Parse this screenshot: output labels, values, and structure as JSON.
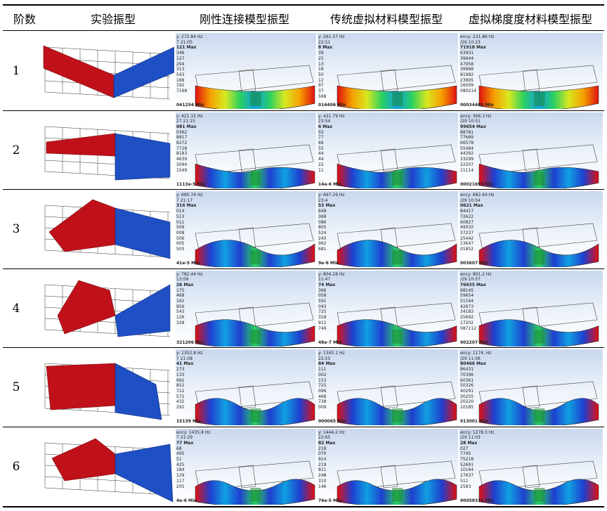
{
  "headers": {
    "order": "阶数",
    "experimental": "实验振型",
    "rigid": "刚性连接模型振型",
    "traditional": "传统虚拟材料模型振型",
    "gradient": "虚拟梯度度材料模型振型"
  },
  "rows": [
    {
      "order": "1",
      "rigid": {
        "freq": "y: 272.84 Hz",
        "time": "7 21:05",
        "max": "121 Max",
        "ticks": [
          "346",
          "127",
          "294",
          "313",
          "543",
          "188",
          "192",
          "7168"
        ],
        "min": "041254 Min"
      },
      "traditional": {
        "freq": "y: 261.57 Hz",
        "time": "22:51",
        "max": "8 Max",
        "ticks": [
          "39",
          "25",
          "13",
          "18",
          "50",
          "12",
          "97",
          "37",
          "568"
        ],
        "min": "016406 Min"
      },
      "gradient": {
        "freq": "ency: 231.86 Hz",
        "time": "/29 10:23",
        "max": "71918 Max",
        "ticks": [
          "63931",
          "39944",
          "47958",
          "39968",
          "81982",
          "23995",
          "16009",
          "080214"
        ],
        "min": "00034405 Min"
      }
    },
    {
      "order": "2",
      "rigid": {
        "freq": "y: 421.15 Hz",
        "time": "27 21:15",
        "max": "081 Max",
        "ticks": [
          "0362",
          "8817",
          "8272",
          "7728",
          "8183",
          "4639",
          "3094",
          "1549"
        ],
        "min": "1113e-5 Min"
      },
      "traditional": {
        "freq": "y: 421.79 Hz",
        "time": "23:54",
        "max": "6 Max",
        "ticks": [
          "55",
          "77",
          "66",
          "55",
          "44",
          "44",
          "22",
          "11"
        ],
        "min": "14e-6 Min"
      },
      "gradient": {
        "freq": "ency: 366.3 Hz",
        "time": "/29 10:51",
        "max": "99654 Max",
        "ticks": [
          "88781",
          "77669",
          "66578",
          "55484",
          "44392",
          "33299",
          "22207",
          "11114"
        ],
        "min": "00021693 Min"
      }
    },
    {
      "order": "3",
      "rigid": {
        "freq": "y: 690.74 Hz",
        "time": "7 21:17",
        "max": "316 Max",
        "ticks": [
          "014",
          "513",
          "011",
          "509",
          "008",
          "506",
          "005",
          "503"
        ],
        "min": "41e-5 Min"
      },
      "traditional": {
        "freq": "y: 667.29 Hz",
        "time": "23:4",
        "max": "53 Max",
        "ticks": [
          "649",
          "368",
          "086",
          "805",
          "524",
          "243",
          "962",
          "681"
        ],
        "min": "9e-6 Min"
      },
      "gradient": {
        "freq": "ency: 682.64 Hz",
        "time": "/29 10:54",
        "max": "0621 Max",
        "ticks": [
          "84417",
          "72622",
          "60827",
          "49032",
          "37237",
          "25442",
          "13647",
          "01852"
        ],
        "min": "003607 Min"
      }
    },
    {
      "order": "4",
      "rigid": {
        "freq": "y: 782.44 Hz",
        "time": "13:09",
        "max": "26 Max",
        "ticks": [
          "175",
          "468",
          "162",
          "856",
          "543",
          "126",
          "",
          "328"
        ],
        "min": "321206 Min"
      },
      "traditional": {
        "freq": "y: 804.28 Hz",
        "time": "11:47",
        "max": "74 Max",
        "ticks": [
          "366",
          "058",
          "591",
          "043",
          "725",
          "318",
          "911",
          "749"
        ],
        "min": "48e-7 Min"
      },
      "gradient": {
        "freq": "ency: 801.2 Hz",
        "time": "/29 10:57",
        "max": "76635 Max",
        "ticks": [
          "68145",
          "59654",
          "51164",
          "42673",
          "34183",
          "25692",
          "17202",
          "087112"
        ],
        "min": "002207 Min"
      }
    },
    {
      "order": "5",
      "rigid": {
        "freq": "y: 1352.8 Hz",
        "time": "7 21:08",
        "max": "41 Max",
        "ticks": [
          "273",
          "133",
          "992",
          "852",
          "712",
          "572",
          "432",
          "292"
        ],
        "min": "15139 Min"
      },
      "traditional": {
        "freq": "y: 1345.1 Hz",
        "time": "22:55",
        "max": "84 Max",
        "ticks": [
          "111",
          "002",
          "153",
          "725",
          "096",
          "468",
          "738",
          "009"
        ],
        "min": "000065 Min"
      },
      "gradient": {
        "freq": "ency: 1174. Hz",
        "time": "/29 11:06",
        "max": "80466 Max",
        "ticks": [
          "86431",
          "70396",
          "60361",
          "50326",
          "40291",
          "30255",
          "20220",
          "10185"
        ],
        "min": "013001 Min"
      }
    },
    {
      "order": "6",
      "rigid": {
        "freq": "ency: 1435.8 Hz",
        "time": "7 21:29",
        "max": "77 Max",
        "ticks": [
          "68",
          "495",
          "51",
          "425",
          "184",
          "129",
          "117",
          "205"
        ],
        "min": "4e-6 Min"
      },
      "traditional": {
        "freq": "y: 1444.2 Hz",
        "time": "22:65",
        "max": "82 Max",
        "ticks": [
          "218",
          "070",
          "914",
          "219",
          "811",
          "248",
          "310",
          "146"
        ],
        "min": "76e-5 Min"
      },
      "gradient": {
        "freq": "ency: 1278.3 Hz",
        "time": "/29 11:03",
        "max": "28 Max",
        "ticks": [
          "027",
          "7745",
          "75218",
          "52691",
          "10164",
          "27637",
          "511",
          "2583"
        ],
        "min": "00058331 Min"
      }
    }
  ]
}
